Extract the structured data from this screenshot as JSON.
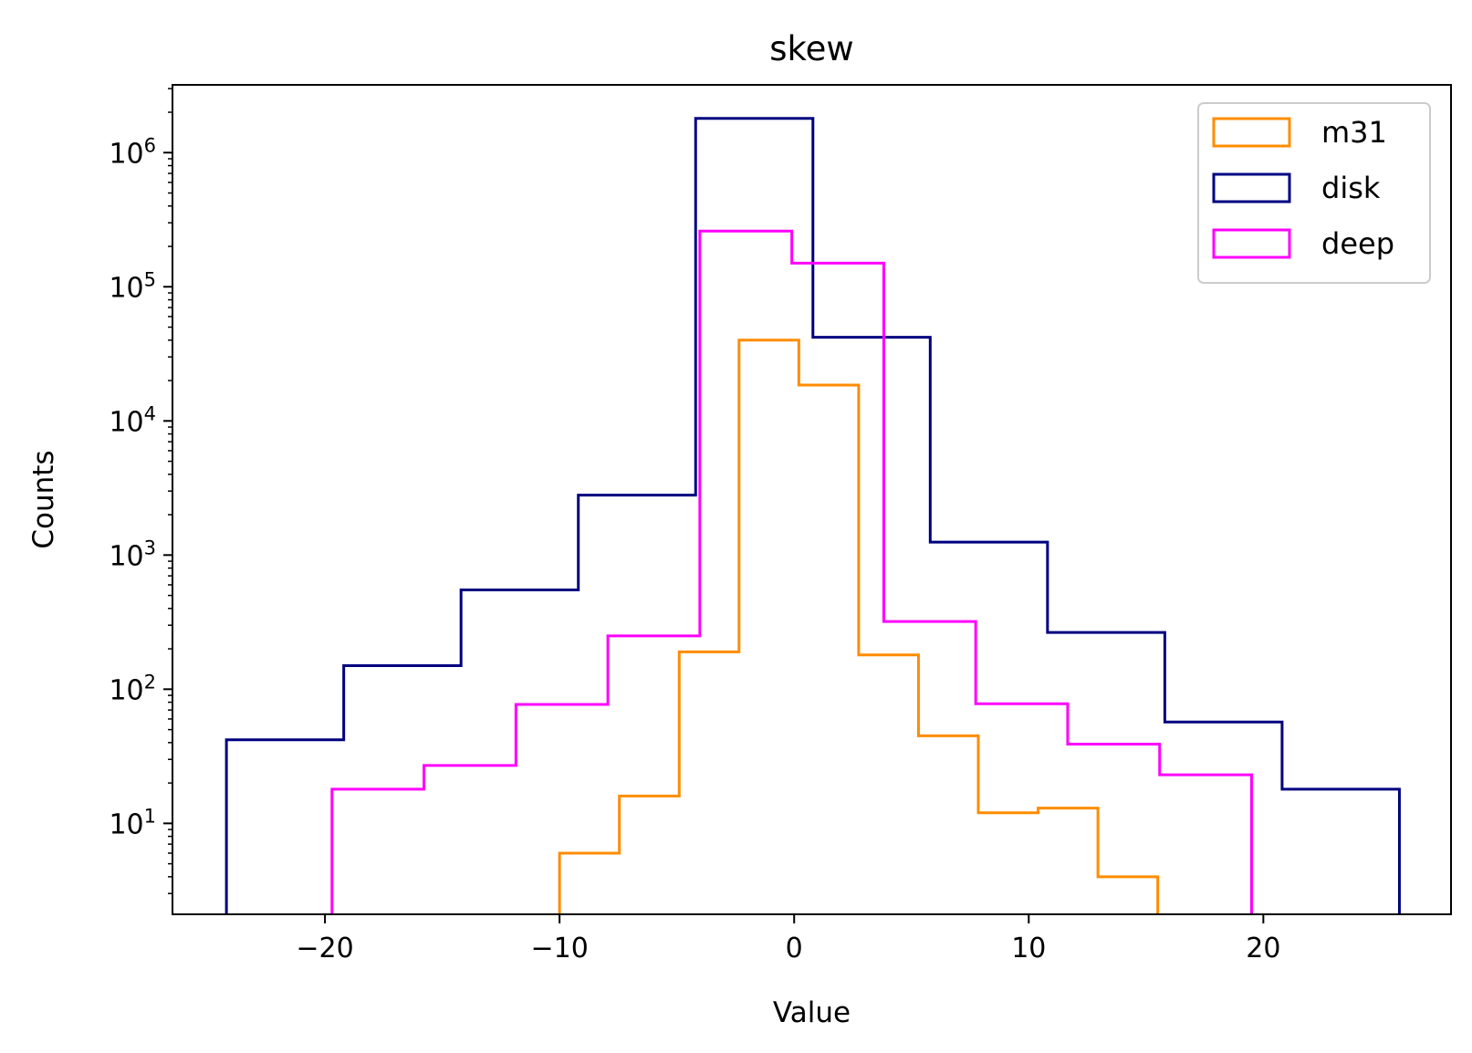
{
  "chart_data": {
    "type": "histogram",
    "title": "skew",
    "xlabel": "Value",
    "ylabel": "Counts",
    "xlim": [
      -26.5,
      28.0
    ],
    "ylim": [
      2.1,
      3200000
    ],
    "yscale": "log",
    "grid": false,
    "legend_position": "top-right",
    "x_ticks": [
      {
        "value": -20,
        "label": "−20"
      },
      {
        "value": -10,
        "label": "−10"
      },
      {
        "value": 0,
        "label": "0"
      },
      {
        "value": 10,
        "label": "10"
      },
      {
        "value": 20,
        "label": "20"
      }
    ],
    "y_ticks": [
      {
        "value": 10,
        "base": "10",
        "exp": "1"
      },
      {
        "value": 100,
        "base": "10",
        "exp": "2"
      },
      {
        "value": 1000,
        "base": "10",
        "exp": "3"
      },
      {
        "value": 10000,
        "base": "10",
        "exp": "4"
      },
      {
        "value": 100000,
        "base": "10",
        "exp": "5"
      },
      {
        "value": 1000000,
        "base": "10",
        "exp": "6"
      }
    ],
    "series": [
      {
        "name": "m31",
        "color": "#ff8c00",
        "bin_edges": [
          -10.0,
          -7.45,
          -4.9,
          -2.35,
          0.2,
          2.75,
          5.3,
          7.85,
          10.4,
          12.95,
          15.5
        ],
        "counts": [
          6,
          16,
          190,
          40000,
          18500,
          180,
          45,
          12,
          13,
          4
        ]
      },
      {
        "name": "disk",
        "color": "#000080",
        "bin_edges": [
          -24.2,
          -19.2,
          -14.2,
          -9.2,
          -4.2,
          0.8,
          5.8,
          10.8,
          15.8,
          20.8,
          25.8
        ],
        "counts": [
          42,
          150,
          550,
          2800,
          1800000,
          42000,
          1250,
          265,
          57,
          18
        ]
      },
      {
        "name": "deep",
        "color": "#ff00ff",
        "bin_edges": [
          -19.7,
          -15.78,
          -11.86,
          -7.94,
          -4.02,
          -0.1,
          3.82,
          7.74,
          11.66,
          15.58,
          19.5
        ],
        "counts": [
          18,
          27,
          77,
          250,
          260000,
          150000,
          320,
          78,
          39,
          23
        ]
      }
    ]
  }
}
